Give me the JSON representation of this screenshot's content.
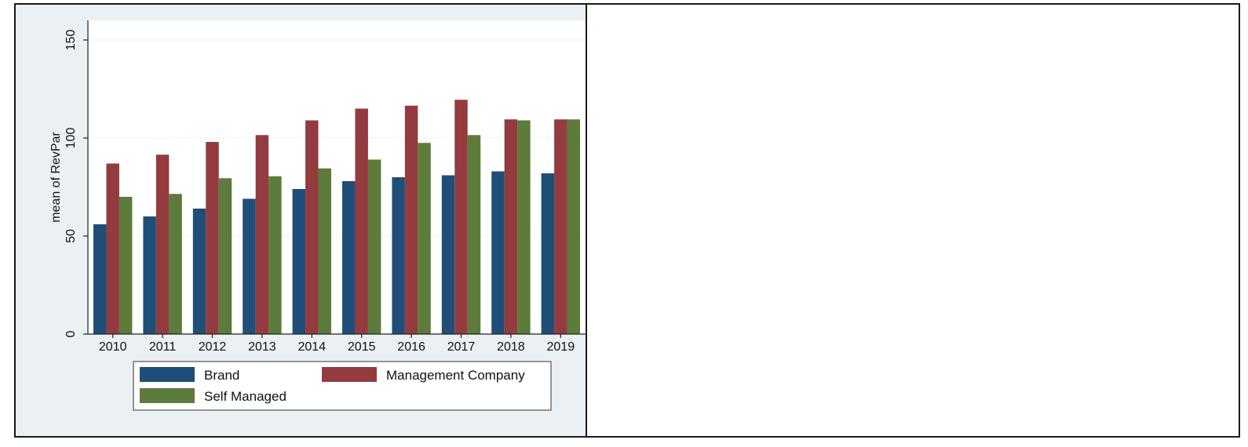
{
  "chart_data": {
    "type": "bar",
    "categories": [
      "2010",
      "2011",
      "2012",
      "2013",
      "2014",
      "2015",
      "2016",
      "2017",
      "2018",
      "2019"
    ],
    "series": [
      {
        "name": "Brand",
        "color": "#1f4e79",
        "values": [
          56,
          60,
          64,
          69,
          74,
          78,
          80,
          81,
          83,
          82
        ]
      },
      {
        "name": "Management Company",
        "color": "#943b3f",
        "values": [
          87,
          91.5,
          98,
          101.5,
          109,
          115,
          116.5,
          119.5,
          109.5,
          109.5
        ]
      },
      {
        "name": "Self Managed",
        "color": "#5d7b3a",
        "values": [
          70,
          71.5,
          79.5,
          80.5,
          84.5,
          89,
          97.5,
          101.5,
          109,
          109.5
        ]
      }
    ],
    "title": "",
    "xlabel": "",
    "ylabel": "mean of RevPar",
    "ylim": [
      0,
      160
    ],
    "yticks": [
      "0",
      "50",
      "100",
      "150"
    ],
    "grid": true,
    "legend_position": "bottom",
    "plot_background": "#ffffff",
    "outer_background": "#eaf0f3"
  }
}
